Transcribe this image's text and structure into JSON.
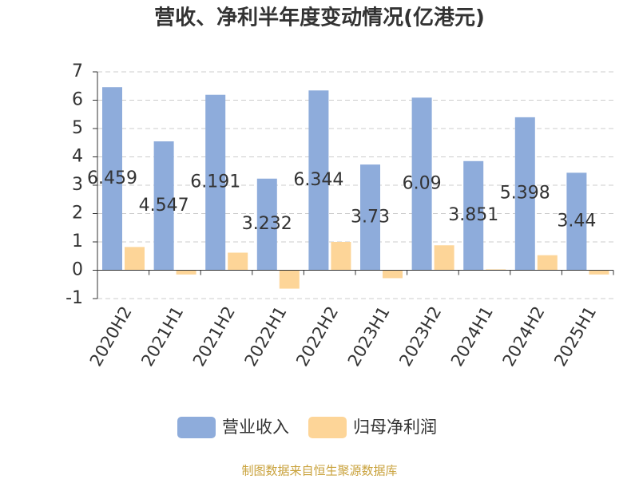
{
  "chart_data": {
    "type": "bar",
    "title": "营收、净利半年度变动情况(亿港元)",
    "categories": [
      "2020H2",
      "2021H1",
      "2021H2",
      "2022H1",
      "2022H2",
      "2023H1",
      "2023H2",
      "2024H1",
      "2024H2",
      "2025H1"
    ],
    "series": [
      {
        "name": "营业收入",
        "color": "#8eacdb",
        "values": [
          6.459,
          4.547,
          6.191,
          3.232,
          6.344,
          3.73,
          6.09,
          3.851,
          5.398,
          3.44
        ],
        "show_labels": true
      },
      {
        "name": "归母净利润",
        "color": "#fdd598",
        "values": [
          0.82,
          -0.15,
          0.62,
          -0.65,
          1.0,
          -0.28,
          0.88,
          0.03,
          0.53,
          -0.15
        ],
        "show_labels": false
      }
    ],
    "ylim": [
      -1,
      7
    ],
    "yticks": [
      -1,
      0,
      1,
      2,
      3,
      4,
      5,
      6,
      7
    ],
    "grid": true,
    "legend": "bottom",
    "source": "制图数据来自恒生聚源数据库"
  }
}
